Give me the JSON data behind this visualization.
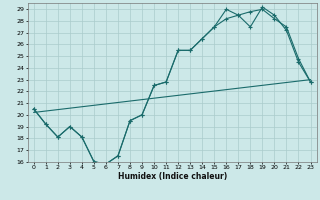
{
  "xlabel": "Humidex (Indice chaleur)",
  "ylabel": "",
  "bg_color": "#cce8e8",
  "grid_color": "#aacccc",
  "line_color": "#1a6b6b",
  "xlim": [
    -0.5,
    23.5
  ],
  "ylim": [
    16,
    29.5
  ],
  "xticks": [
    0,
    1,
    2,
    3,
    4,
    5,
    6,
    7,
    8,
    9,
    10,
    11,
    12,
    13,
    14,
    15,
    16,
    17,
    18,
    19,
    20,
    21,
    22,
    23
  ],
  "yticks": [
    16,
    17,
    18,
    19,
    20,
    21,
    22,
    23,
    24,
    25,
    26,
    27,
    28,
    29
  ],
  "line1_x": [
    0,
    1,
    2,
    3,
    4,
    5,
    6,
    7,
    8,
    9,
    10,
    11,
    12,
    13,
    14,
    15,
    16,
    17,
    18,
    19,
    20,
    21,
    22,
    23
  ],
  "line1_y": [
    20.5,
    19.2,
    18.1,
    19.0,
    18.1,
    16.0,
    15.8,
    16.5,
    19.5,
    20.0,
    22.5,
    22.8,
    25.5,
    25.5,
    26.5,
    27.5,
    29.0,
    28.5,
    28.8,
    29.0,
    28.2,
    27.5,
    24.8,
    22.8
  ],
  "line2_x": [
    0,
    1,
    2,
    3,
    4,
    5,
    6,
    7,
    8,
    9,
    10,
    11,
    12,
    13,
    14,
    15,
    16,
    17,
    18,
    19,
    20,
    21,
    22,
    23
  ],
  "line2_y": [
    20.5,
    19.2,
    18.1,
    19.0,
    18.1,
    16.0,
    15.8,
    16.5,
    19.5,
    20.0,
    22.5,
    22.8,
    25.5,
    25.5,
    26.5,
    27.5,
    28.2,
    28.5,
    27.5,
    29.2,
    28.5,
    27.2,
    24.5,
    22.8
  ],
  "line3_x": [
    0,
    23
  ],
  "line3_y": [
    20.2,
    23.0
  ]
}
